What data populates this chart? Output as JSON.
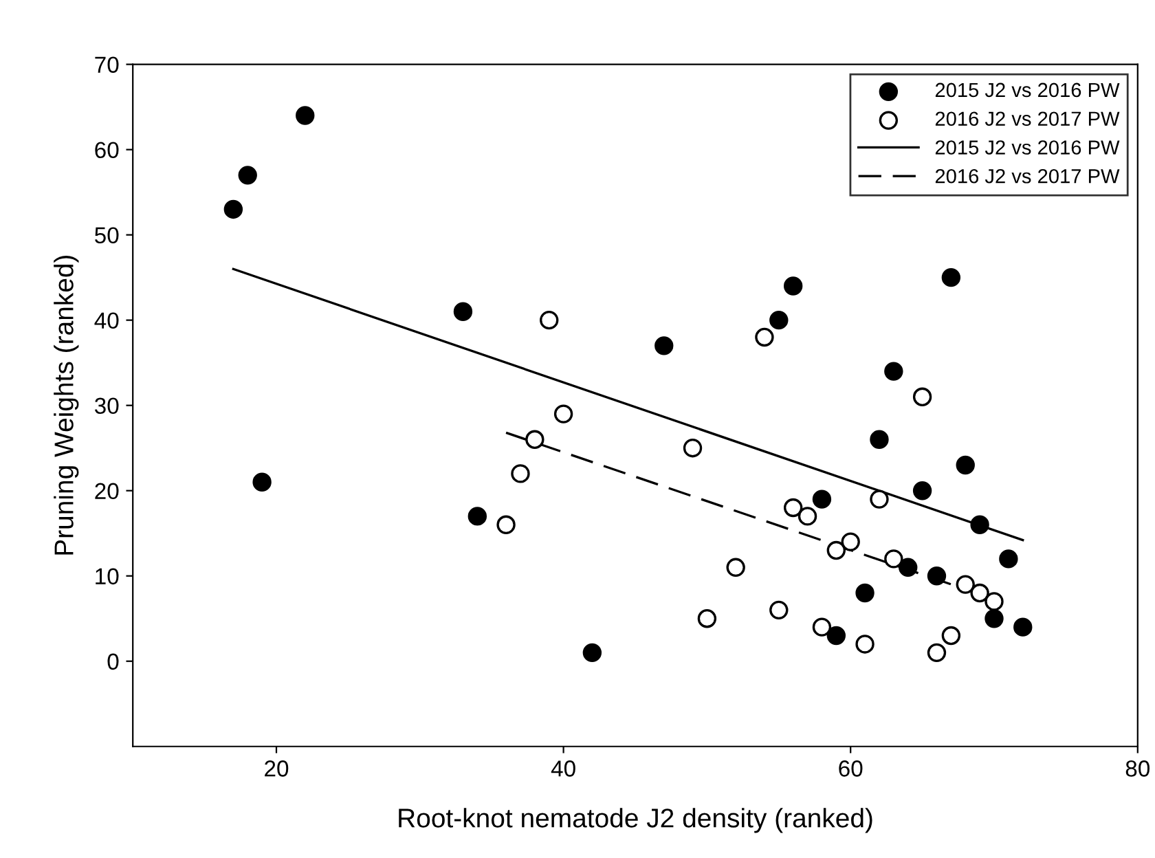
{
  "chart_data": {
    "type": "scatter",
    "xlabel": "Root-knot nematode J2 density (ranked)",
    "ylabel": "Pruning Weights (ranked)",
    "xlim": [
      10,
      80
    ],
    "xticks": [
      20,
      40,
      60,
      80
    ],
    "ylim": [
      -10,
      70
    ],
    "yticks": [
      0,
      10,
      20,
      30,
      40,
      50,
      60,
      70
    ],
    "grid": false,
    "legend": "top right",
    "series": [
      {
        "name": "2015 J2 vs 2016 PW",
        "marker": "circle",
        "color": "#000000",
        "x": [
          17,
          18,
          19,
          22,
          33,
          34,
          42,
          47,
          55,
          56,
          58,
          59,
          61,
          62,
          63,
          64,
          65,
          66,
          67,
          68,
          69,
          70,
          71,
          72
        ],
        "values": [
          53,
          57,
          21,
          64,
          41,
          17,
          1,
          37,
          40,
          44,
          19,
          3,
          8,
          26,
          34,
          11,
          20,
          10,
          45,
          23,
          16,
          5,
          12,
          4
        ]
      },
      {
        "name": "2016 J2 vs 2017 PW",
        "marker": "circle",
        "color": "#ffffff",
        "x": [
          36,
          37,
          38,
          39,
          40,
          49,
          50,
          52,
          54,
          55,
          56,
          57,
          58,
          59,
          60,
          61,
          62,
          63,
          65,
          66,
          67,
          68,
          69,
          70
        ],
        "values": [
          16,
          22,
          26,
          40,
          29,
          25,
          5,
          11,
          38,
          6,
          18,
          17,
          4,
          13,
          14,
          2,
          19,
          12,
          31,
          1,
          3,
          9,
          8,
          7
        ]
      },
      {
        "name": "2015 J2 vs 2016 PW",
        "type": "line",
        "line_style": "solid",
        "color": "#000000",
        "x": [
          17,
          72
        ],
        "values": [
          46,
          14.2
        ]
      },
      {
        "name": "2016 J2 vs 2017 PW",
        "type": "line",
        "line_style": "dashed",
        "color": "#000000",
        "x": [
          36,
          70
        ],
        "values": [
          26.8,
          7.3
        ]
      }
    ]
  }
}
